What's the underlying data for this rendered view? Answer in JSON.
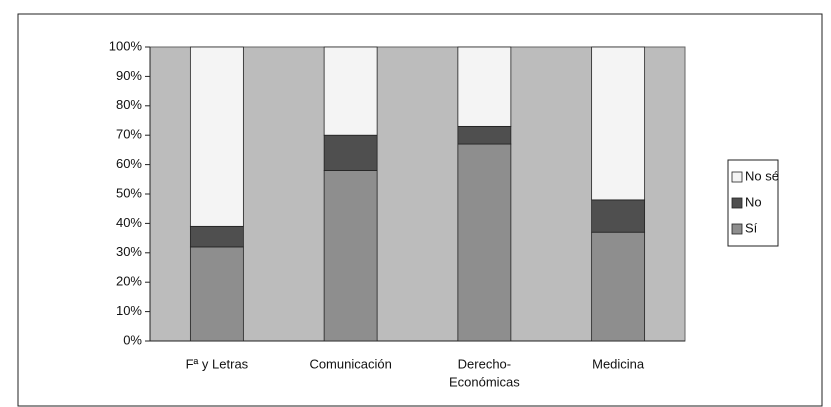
{
  "chart_data": {
    "type": "stacked_bar_percent",
    "categories": [
      "Fª y Letras",
      "Comunicación",
      [
        "Derecho-",
        "Económicas"
      ],
      "Medicina"
    ],
    "series": [
      {
        "name": "Sí",
        "color": "#8e8e8e",
        "values": [
          32,
          58,
          67,
          37
        ]
      },
      {
        "name": "No",
        "color": "#4f4f4f",
        "values": [
          7,
          12,
          6,
          11
        ]
      },
      {
        "name": "No sé",
        "color": "#f4f4f4",
        "values": [
          61,
          30,
          27,
          52
        ]
      }
    ],
    "ylim": [
      0,
      100
    ],
    "yticks": [
      {
        "value": 0,
        "label": "0%"
      },
      {
        "value": 10,
        "label": "10%"
      },
      {
        "value": 20,
        "label": "20%"
      },
      {
        "value": 30,
        "label": "30%"
      },
      {
        "value": 40,
        "label": "40%"
      },
      {
        "value": 50,
        "label": "50%"
      },
      {
        "value": 60,
        "label": "60%"
      },
      {
        "value": 70,
        "label": "70%"
      },
      {
        "value": 80,
        "label": "80%"
      },
      {
        "value": 90,
        "label": "90%"
      },
      {
        "value": 100,
        "label": "100%"
      }
    ],
    "legend": "right",
    "plot_background": "#bcbcbc"
  }
}
